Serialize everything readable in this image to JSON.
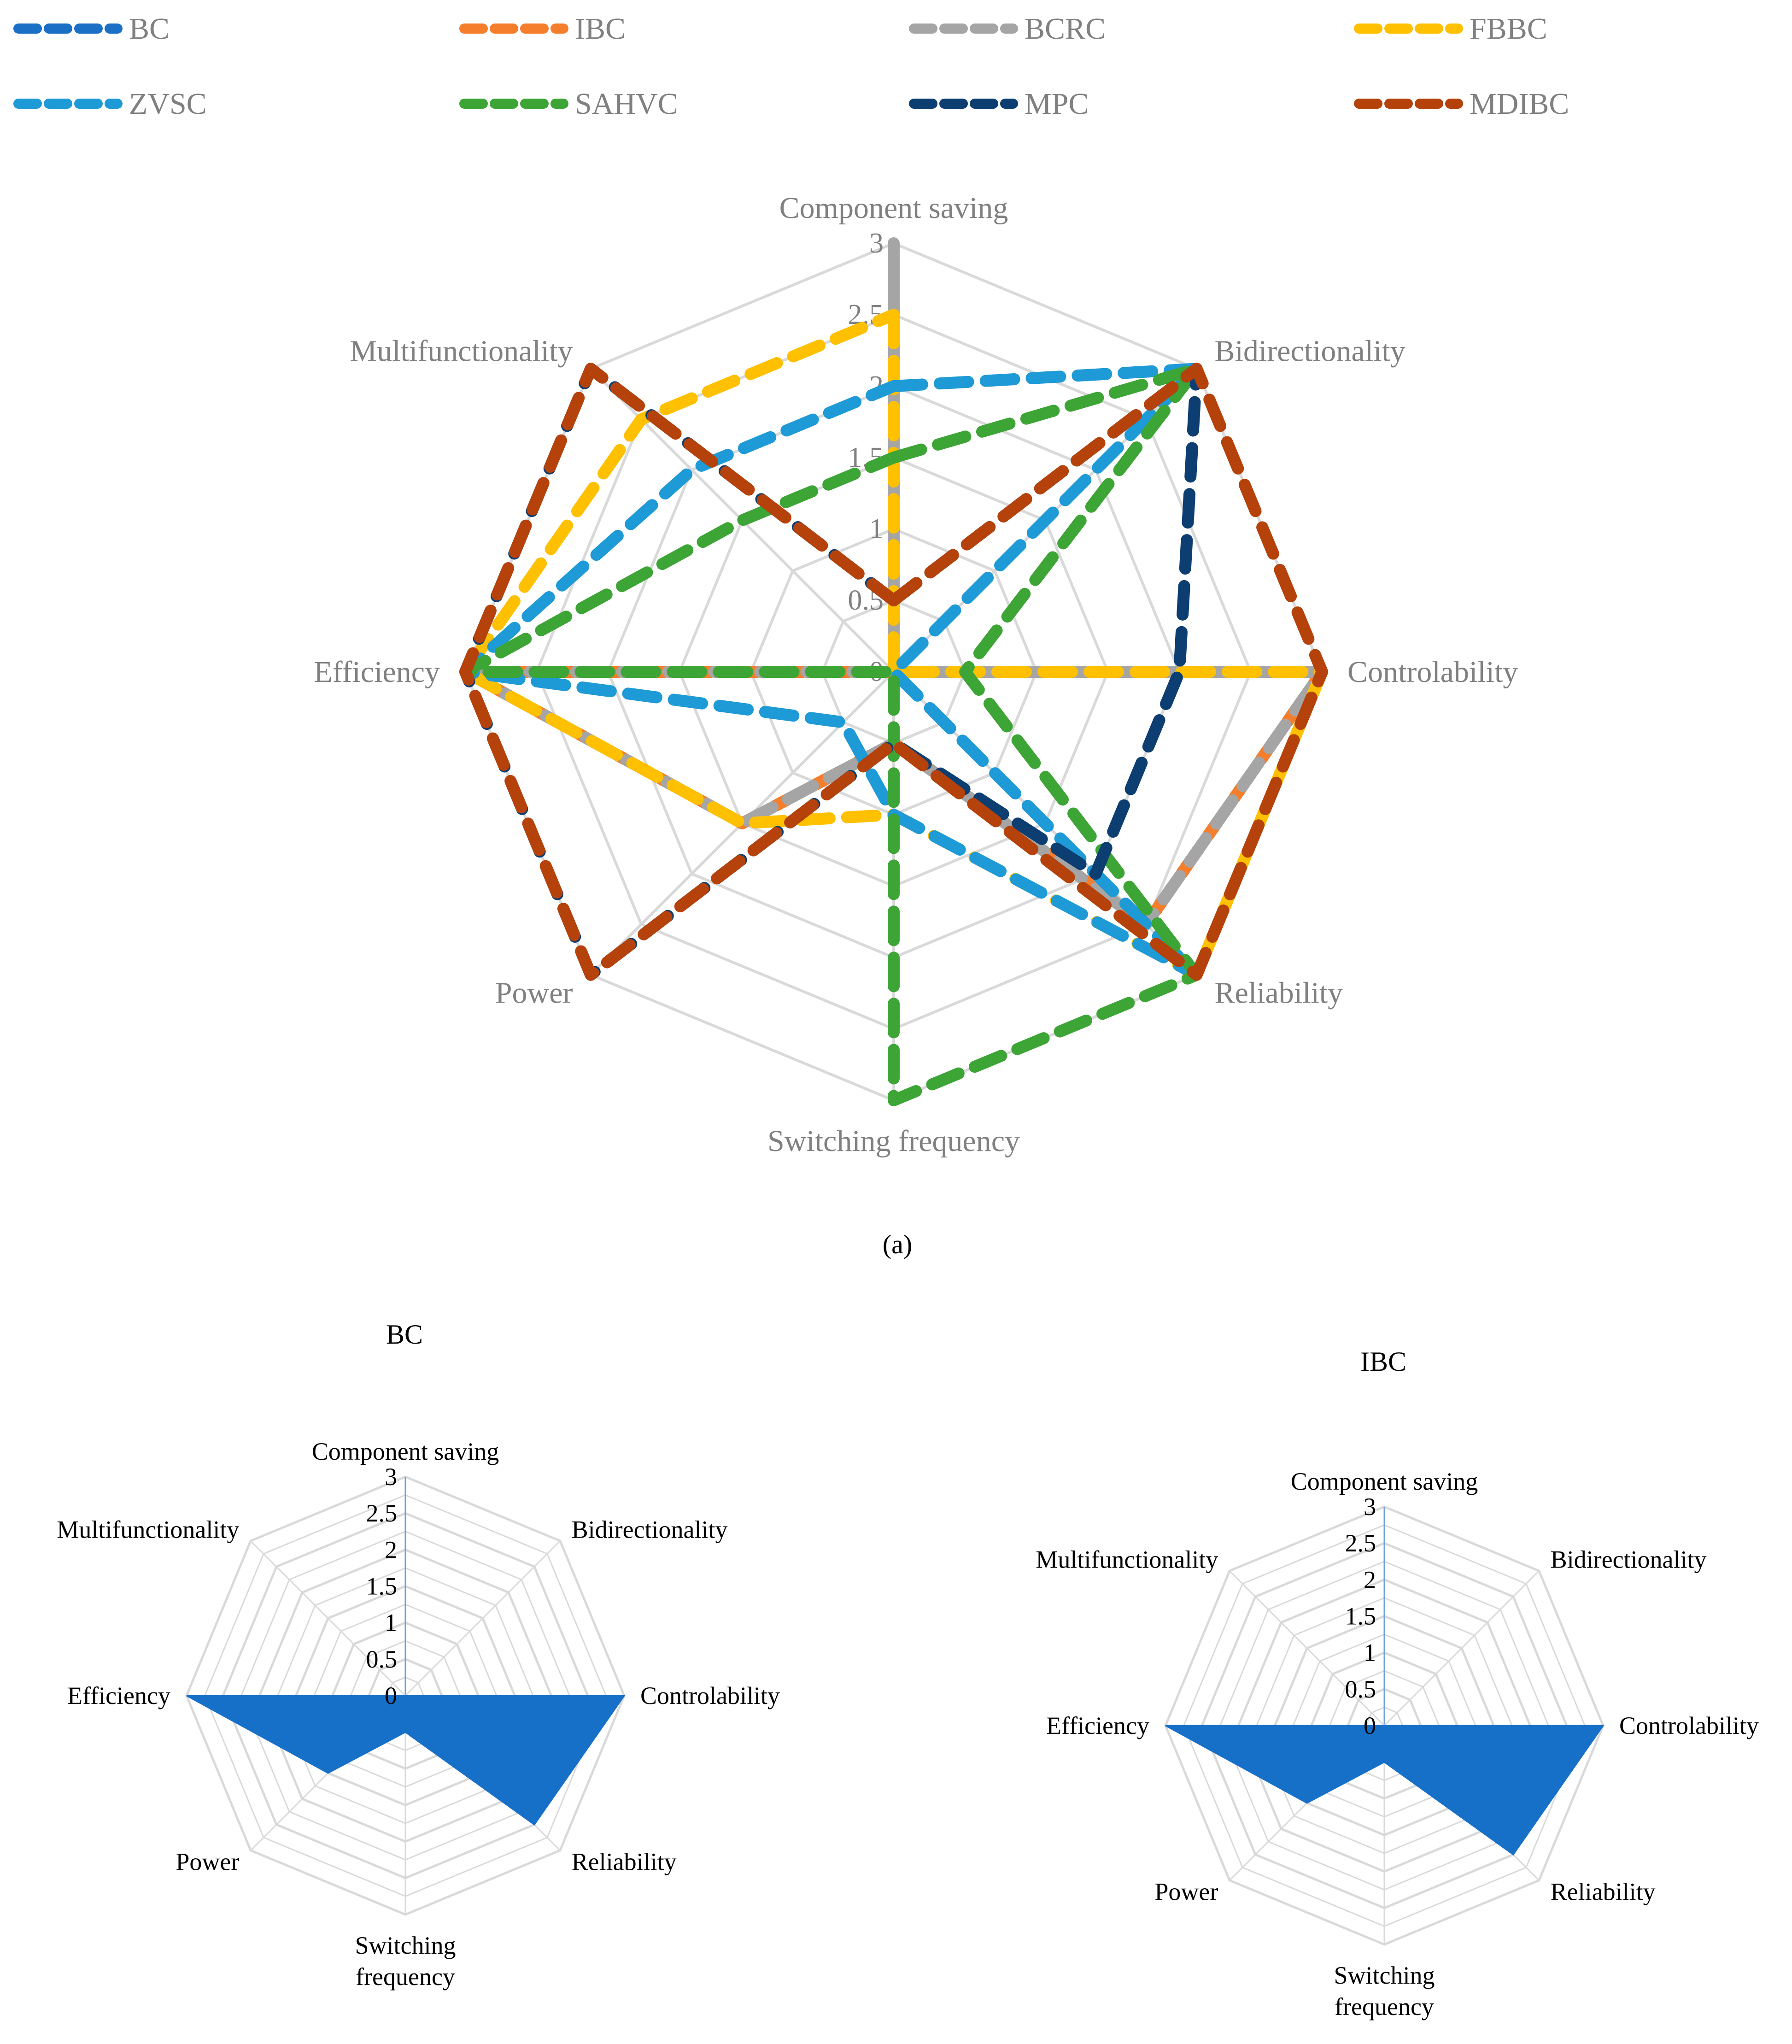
{
  "chart_data": [
    {
      "type": "radar",
      "panel": "a",
      "caption": "(a)",
      "axes": [
        "Component saving",
        "Bidirectionality",
        "Controlability",
        "Reliability",
        "Switching frequency",
        "Power",
        "Efficiency",
        "Multifunctionality"
      ],
      "ticks": [
        "0",
        "0.5",
        "1",
        "1.5",
        "2",
        "2.5",
        "3"
      ],
      "rmax": 3,
      "legend_position": "top",
      "series": [
        {
          "name": "BC",
          "color": "#1b6fc4",
          "values": [
            0,
            0,
            3,
            2.5,
            0.5,
            1.5,
            3,
            0
          ]
        },
        {
          "name": "IBC",
          "color": "#f47e2b",
          "values": [
            0,
            0,
            3,
            2.5,
            0.5,
            1.5,
            3,
            0
          ]
        },
        {
          "name": "BCRC",
          "color": "#a5a5a5",
          "values": [
            3,
            0,
            3,
            2.5,
            0.5,
            1.5,
            3,
            0
          ]
        },
        {
          "name": "FBBC",
          "color": "#ffc000",
          "values": [
            2.5,
            0,
            3,
            3,
            1,
            1.5,
            3,
            2.5
          ]
        },
        {
          "name": "ZVSC",
          "color": "#1e9ad6",
          "values": [
            2,
            3,
            0,
            3,
            1,
            0.5,
            3,
            2
          ]
        },
        {
          "name": "SAHVC",
          "color": "#3da535",
          "values": [
            1.5,
            3,
            0.5,
            3,
            3,
            0,
            3,
            1.5
          ]
        },
        {
          "name": "MPC",
          "color": "#0c3e71",
          "values": [
            0.5,
            3,
            2,
            2,
            0.5,
            3,
            3,
            3
          ]
        },
        {
          "name": "MDIBC",
          "color": "#b5420a",
          "values": [
            0.5,
            3,
            3,
            3,
            0.5,
            3,
            3,
            3
          ]
        }
      ]
    },
    {
      "type": "radar",
      "title": "BC",
      "axes": [
        "Component saving",
        "Bidirectionality",
        "Controlability",
        "Reliability",
        "Switching frequency",
        "Power",
        "Efficiency",
        "Multifunctionality"
      ],
      "ticks": [
        "0",
        "0.5",
        "1",
        "1.5",
        "2",
        "2.5",
        "3"
      ],
      "rmax": 3,
      "fill_color": "#1770c8",
      "values": [
        0,
        0,
        3,
        2.5,
        0.5,
        1.5,
        3,
        0
      ]
    },
    {
      "type": "radar",
      "title": "IBC",
      "axes": [
        "Component saving",
        "Bidirectionality",
        "Controlability",
        "Reliability",
        "Switching frequency",
        "Power",
        "Efficiency",
        "Multifunctionality"
      ],
      "ticks": [
        "0",
        "0.5",
        "1",
        "1.5",
        "2",
        "2.5",
        "3"
      ],
      "rmax": 3,
      "fill_color": "#1770c8",
      "values": [
        0,
        0,
        3,
        2.5,
        0.5,
        1.5,
        3,
        0
      ]
    }
  ]
}
